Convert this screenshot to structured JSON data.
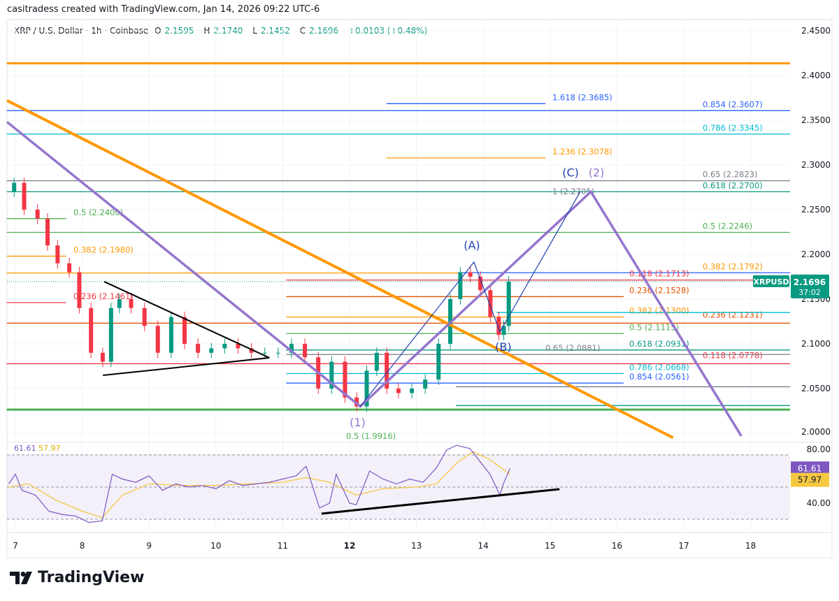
{
  "header": {
    "credit": "casitradess created with TradingView.com, Jan 14, 2026 09:22 UTC-6"
  },
  "legend": {
    "symbol": "XRP / U.S. Dollar · 1h · Coinbase",
    "o_label": "O",
    "o": "2.1595",
    "h_label": "H",
    "h": "2.1740",
    "l_label": "L",
    "l": "2.1452",
    "c_label": "C",
    "c": "2.1696",
    "change": "+0.0103 (+0.48%)"
  },
  "colors": {
    "up": "#089981",
    "down": "#f23645",
    "rsi": "#7e57c2",
    "rsi_ma": "#f5c842",
    "accent": "#22ab94"
  },
  "price_tag": {
    "symbol": "XRPUSD",
    "price": "2.1696",
    "countdown": "37:02"
  },
  "rsi_legend": {
    "rsi": "61.61",
    "ma": "57.97"
  },
  "footer": {
    "logo": "TradingView"
  },
  "chart_data": {
    "type": "candlestick",
    "y_ticks": [
      "2.4500",
      "2.4000",
      "2.3500",
      "2.3000",
      "2.2500",
      "2.2000",
      "2.1500",
      "2.1000",
      "2.0500",
      "2.0000"
    ],
    "x_ticks": [
      "7",
      "8",
      "9",
      "10",
      "11",
      "12",
      "13",
      "14",
      "15",
      "16",
      "17",
      "18"
    ],
    "ylim": [
      2.0,
      2.45
    ],
    "price_path": [
      [
        6.9,
        2.27
      ],
      [
        7.0,
        2.28
      ],
      [
        7.2,
        2.25
      ],
      [
        7.4,
        2.24
      ],
      [
        7.5,
        2.21
      ],
      [
        7.7,
        2.19
      ],
      [
        7.85,
        2.18
      ],
      [
        8.0,
        2.14
      ],
      [
        8.2,
        2.09
      ],
      [
        8.35,
        2.08
      ],
      [
        8.45,
        2.14
      ],
      [
        8.6,
        2.15
      ],
      [
        8.8,
        2.14
      ],
      [
        9.0,
        2.12
      ],
      [
        9.2,
        2.09
      ],
      [
        9.4,
        2.13
      ],
      [
        9.6,
        2.1
      ],
      [
        9.8,
        2.09
      ],
      [
        10.0,
        2.095
      ],
      [
        10.2,
        2.1
      ],
      [
        10.4,
        2.095
      ],
      [
        10.6,
        2.09
      ],
      [
        10.8,
        2.09
      ],
      [
        11.0,
        2.09
      ],
      [
        11.2,
        2.1
      ],
      [
        11.4,
        2.085
      ],
      [
        11.6,
        2.05
      ],
      [
        11.8,
        2.08
      ],
      [
        12.0,
        2.04
      ],
      [
        12.15,
        2.03
      ],
      [
        12.3,
        2.07
      ],
      [
        12.45,
        2.09
      ],
      [
        12.6,
        2.05
      ],
      [
        12.8,
        2.045
      ],
      [
        13.0,
        2.05
      ],
      [
        13.2,
        2.06
      ],
      [
        13.4,
        2.1
      ],
      [
        13.55,
        2.15
      ],
      [
        13.7,
        2.18
      ],
      [
        13.85,
        2.175
      ],
      [
        14.0,
        2.16
      ],
      [
        14.15,
        2.13
      ],
      [
        14.25,
        2.11
      ],
      [
        14.3,
        2.12
      ],
      [
        14.4,
        2.1696
      ]
    ],
    "levels": [
      {
        "price": 2.4136,
        "color": "#ff9800",
        "from": 6.87,
        "to": 18.6,
        "width": 3,
        "label": "",
        "group": "none"
      },
      {
        "price": 2.3607,
        "color": "#2962ff",
        "from": 6.87,
        "to": 18.6,
        "label": "0.854 (2.3607)",
        "group": "right"
      },
      {
        "price": 2.3345,
        "color": "#00bcd4",
        "from": 6.87,
        "to": 18.6,
        "label": "0.786 (2.3345)",
        "group": "right"
      },
      {
        "price": 2.2823,
        "color": "#787b86",
        "from": 6.87,
        "to": 18.6,
        "label": "0.65 (2.2823)",
        "group": "right"
      },
      {
        "price": 2.27,
        "color": "#089981",
        "from": 6.87,
        "to": 18.6,
        "label": "0.618 (2.2700)",
        "group": "right"
      },
      {
        "price": 2.2246,
        "color": "#4caf50",
        "from": 6.87,
        "to": 18.6,
        "label": "0.5 (2.2246)",
        "group": "right"
      },
      {
        "price": 2.1792,
        "color": "#ff9800",
        "from": 6.87,
        "to": 13.62,
        "label": "0.382 (2.1792)",
        "group": "right"
      },
      {
        "price": 2.1795,
        "color": "#2962ff",
        "from": 13.62,
        "to": 18.6,
        "label": "",
        "group": "none"
      },
      {
        "price": 2.1231,
        "color": "#e65100",
        "from": 6.87,
        "to": 18.6,
        "label": "0.236 (2.1231)",
        "group": "right2"
      },
      {
        "price": 2.0778,
        "color": "#f23645",
        "from": 6.87,
        "to": 18.6,
        "label": "0.118 (2.0778)",
        "group": "right2"
      },
      {
        "price": 2.1713,
        "color": "#f23645",
        "from": 11.05,
        "to": 18.6,
        "label": "0.118 (2.1713)",
        "group": "mid"
      },
      {
        "price": 2.1528,
        "color": "#e65100",
        "from": 11.05,
        "to": 16.1,
        "label": "0.236 (2.1528)",
        "group": "mid"
      },
      {
        "price": 2.13,
        "color": "#ff9800",
        "from": 11.05,
        "to": 16.1,
        "label": "0.382 (2.1300)",
        "group": "mid"
      },
      {
        "price": 2.135,
        "color": "#00bcd4",
        "from": 14.2,
        "to": 18.6,
        "label": "",
        "group": "none"
      },
      {
        "price": 2.1115,
        "color": "#4caf50",
        "from": 11.05,
        "to": 16.1,
        "label": "0.5 (2.1115)",
        "group": "mid"
      },
      {
        "price": 2.0931,
        "color": "#089981",
        "from": 11.05,
        "to": 18.6,
        "label": "0.618 (2.0931)",
        "group": "mid"
      },
      {
        "price": 2.0881,
        "color": "#787b86",
        "from": 11.05,
        "to": 18.6,
        "label": "0.65 (2.0881)",
        "group": "mid"
      },
      {
        "price": 2.0668,
        "color": "#00bcd4",
        "from": 11.05,
        "to": 16.1,
        "label": "0.786 (2.0668)",
        "group": "mid"
      },
      {
        "price": 2.0561,
        "color": "#2962ff",
        "from": 11.05,
        "to": 16.1,
        "label": "0.854 (2.0561)",
        "group": "mid"
      },
      {
        "price": 2.052,
        "color": "#787b86",
        "from": 13.59,
        "to": 18.6,
        "label": "",
        "group": "none"
      },
      {
        "price": 2.031,
        "color": "#089981",
        "from": 13.59,
        "to": 18.6,
        "label": "",
        "group": "none"
      },
      {
        "price": 2.0265,
        "color": "#4caf50",
        "from": 6.87,
        "to": 18.6,
        "width": 3,
        "label": "",
        "group": "none"
      },
      {
        "price": 1.9916,
        "color": "#4caf50",
        "from": 11.9,
        "to": 11.9,
        "label": "0.5 (1.9916)",
        "group": "bottom"
      },
      {
        "price": 2.24,
        "color": "#4caf50",
        "from": 6.87,
        "to": 7.76,
        "label": "0.5 (2.2400)",
        "group": "left"
      },
      {
        "price": 2.198,
        "color": "#ff9800",
        "from": 6.87,
        "to": 7.76,
        "label": "0.382 (2.1980)",
        "group": "left"
      },
      {
        "price": 2.1461,
        "color": "#f23645",
        "from": 6.87,
        "to": 7.76,
        "label": "0.236 (2.1461)",
        "group": "left"
      },
      {
        "price": 2.3685,
        "color": "#2962ff",
        "from": 12.55,
        "to": 14.93,
        "label": "1.618 (2.3685)",
        "group": "top"
      },
      {
        "price": 2.3078,
        "color": "#ff9800",
        "from": 12.55,
        "to": 14.93,
        "label": "1.236 (2.3078)",
        "group": "top"
      },
      {
        "price": 2.2705,
        "color": "#787b86",
        "from": 15.0,
        "to": 15.0,
        "label": "1 (2.2705)",
        "group": "top"
      }
    ],
    "trendlines": [
      {
        "name": "orange-trendline",
        "color": "#ff9800",
        "width": 4,
        "points": [
          [
            6.875,
            2.372
          ],
          [
            16.84,
            1.995
          ]
        ]
      },
      {
        "name": "purple-wave-path",
        "color": "#9575cd",
        "width": 3.5,
        "points": [
          [
            6.875,
            2.348
          ],
          [
            12.16,
            2.03
          ],
          [
            15.61,
            2.27
          ],
          [
            17.86,
            1.997
          ]
        ]
      },
      {
        "name": "blue-abc-path",
        "color": "#1e40af",
        "width": 1.2,
        "points": [
          [
            12.16,
            2.03
          ],
          [
            13.86,
            2.1914
          ],
          [
            14.25,
            2.1133
          ],
          [
            15.45,
            2.27
          ]
        ]
      },
      {
        "name": "triangle-upper",
        "color": "#000000",
        "width": 2,
        "points": [
          [
            8.33,
            2.1695
          ],
          [
            10.8,
            2.0844
          ]
        ]
      },
      {
        "name": "triangle-lower",
        "color": "#000000",
        "width": 2,
        "points": [
          [
            8.31,
            2.0648
          ],
          [
            10.8,
            2.0844
          ]
        ]
      }
    ],
    "wave_labels": [
      {
        "text": "(A)",
        "day": 13.83,
        "price": 2.206,
        "color": "#1e40af"
      },
      {
        "text": "(B)",
        "day": 14.3,
        "price": 2.092,
        "color": "#1e40af"
      },
      {
        "text": "(C)",
        "day": 15.38,
        "price": 2.287,
        "color": "#1e40af"
      },
      {
        "text": "(2)",
        "day": 15.62,
        "price": 2.287,
        "color": "#9575cd"
      },
      {
        "text": "(1)",
        "day": 12.12,
        "price": 2.008,
        "color": "#9575cd"
      }
    ],
    "rsi": {
      "y_ticks": [
        "80.00",
        "40.00"
      ],
      "bands": [
        70,
        50,
        30
      ],
      "values": [
        [
          6.9,
          52
        ],
        [
          7.0,
          58
        ],
        [
          7.1,
          48
        ],
        [
          7.3,
          45
        ],
        [
          7.5,
          35
        ],
        [
          7.7,
          33
        ],
        [
          7.9,
          32
        ],
        [
          8.1,
          28
        ],
        [
          8.3,
          29
        ],
        [
          8.45,
          58
        ],
        [
          8.6,
          55
        ],
        [
          8.8,
          53
        ],
        [
          9.0,
          57
        ],
        [
          9.2,
          48
        ],
        [
          9.4,
          52
        ],
        [
          9.6,
          50
        ],
        [
          9.8,
          51
        ],
        [
          10.0,
          49
        ],
        [
          10.2,
          54
        ],
        [
          10.4,
          51
        ],
        [
          10.6,
          52
        ],
        [
          10.8,
          53
        ],
        [
          11.0,
          55
        ],
        [
          11.2,
          57
        ],
        [
          11.35,
          63
        ],
        [
          11.55,
          37
        ],
        [
          11.7,
          40
        ],
        [
          11.8,
          58
        ],
        [
          12.0,
          40
        ],
        [
          12.1,
          39
        ],
        [
          12.3,
          60
        ],
        [
          12.5,
          55
        ],
        [
          12.7,
          52
        ],
        [
          12.9,
          55
        ],
        [
          13.1,
          53
        ],
        [
          13.3,
          62
        ],
        [
          13.45,
          73
        ],
        [
          13.6,
          76
        ],
        [
          13.8,
          74
        ],
        [
          13.95,
          66
        ],
        [
          14.1,
          58
        ],
        [
          14.25,
          45
        ],
        [
          14.3,
          52
        ],
        [
          14.4,
          61.61
        ]
      ],
      "ma": [
        [
          6.9,
          50
        ],
        [
          7.2,
          52
        ],
        [
          7.6,
          42
        ],
        [
          8.0,
          35
        ],
        [
          8.3,
          31
        ],
        [
          8.6,
          45
        ],
        [
          9.0,
          52
        ],
        [
          9.5,
          51
        ],
        [
          10,
          51
        ],
        [
          10.5,
          52
        ],
        [
          11,
          53
        ],
        [
          11.35,
          56
        ],
        [
          11.7,
          53
        ],
        [
          12.1,
          45
        ],
        [
          12.5,
          49
        ],
        [
          13,
          50
        ],
        [
          13.3,
          52
        ],
        [
          13.6,
          65
        ],
        [
          13.85,
          72
        ],
        [
          14.1,
          67
        ],
        [
          14.4,
          57.97
        ]
      ],
      "trendline": [
        [
          11.58,
          33.5
        ],
        [
          15.14,
          48.7
        ]
      ]
    }
  }
}
